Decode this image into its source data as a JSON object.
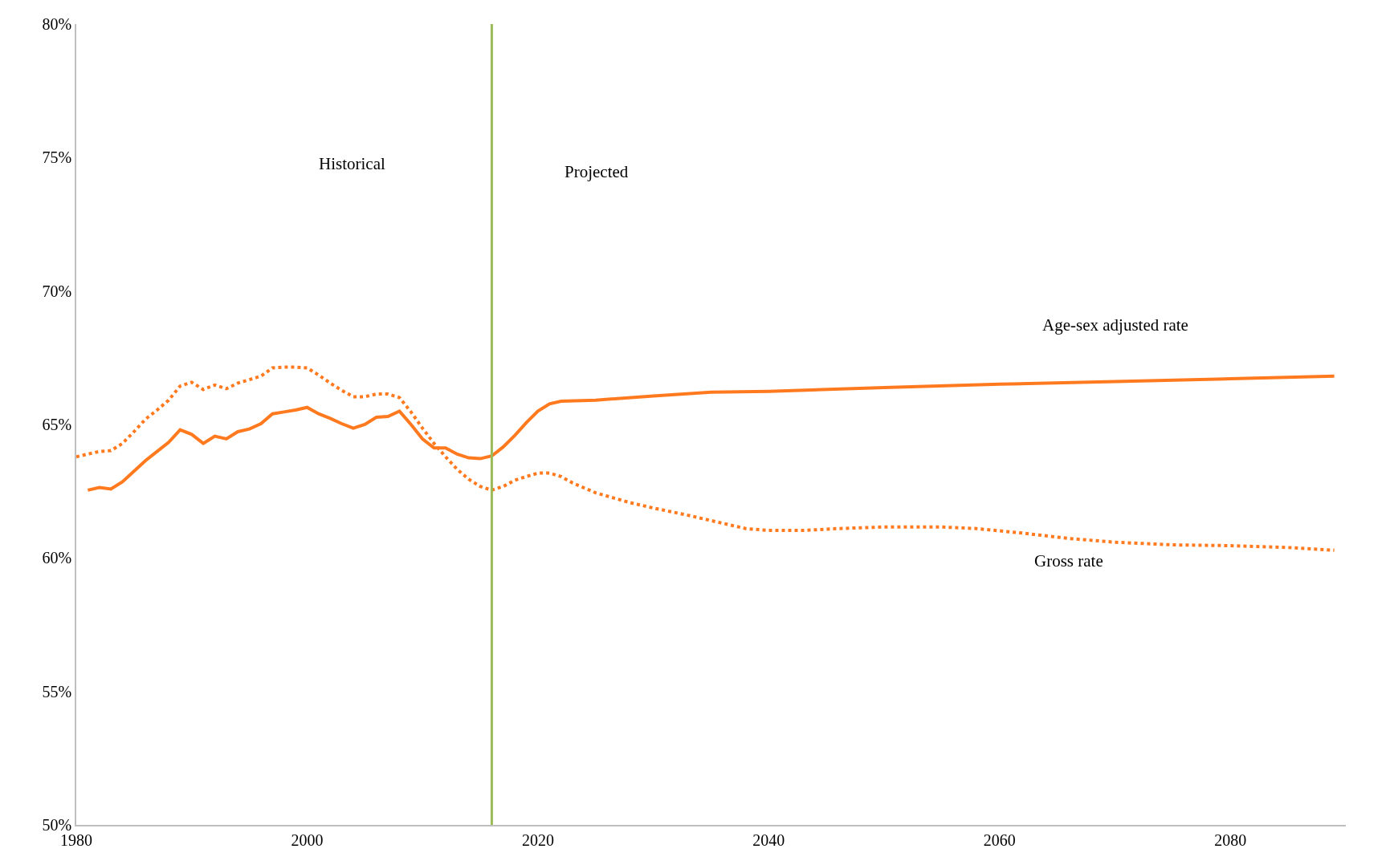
{
  "chart_data": {
    "type": "line",
    "series": [
      {
        "name": "Age-sex adjusted rate",
        "color": "#ff7a1f",
        "line_style": "solid",
        "x": [
          1981,
          1982,
          1983,
          1984,
          1985,
          1986,
          1987,
          1988,
          1989,
          1990,
          1991,
          1992,
          1993,
          1994,
          1995,
          1996,
          1997,
          1998,
          1999,
          2000,
          2001,
          2002,
          2003,
          2004,
          2005,
          2006,
          2007,
          2008,
          2009,
          2010,
          2011,
          2012,
          2013,
          2014,
          2015,
          2016,
          2017,
          2018,
          2019,
          2020,
          2021,
          2022,
          2025,
          2030,
          2035,
          2040,
          2050,
          2060,
          2070,
          2080,
          2089
        ],
        "values": [
          62.54,
          62.64,
          62.58,
          62.85,
          63.25,
          63.65,
          63.99,
          64.33,
          64.8,
          64.63,
          64.29,
          64.56,
          64.46,
          64.73,
          64.83,
          65.03,
          65.4,
          65.47,
          65.54,
          65.64,
          65.4,
          65.23,
          65.03,
          64.86,
          65.0,
          65.27,
          65.3,
          65.5,
          65.0,
          64.46,
          64.12,
          64.12,
          63.89,
          63.75,
          63.72,
          63.82,
          64.16,
          64.59,
          65.07,
          65.5,
          65.77,
          65.87,
          65.91,
          66.07,
          66.21,
          66.24,
          66.38,
          66.51,
          66.61,
          66.71,
          66.81
        ]
      },
      {
        "name": "Gross rate",
        "color": "#ff7a1f",
        "line_style": "dotted",
        "x": [
          1980,
          1982,
          1983,
          1984,
          1985,
          1986,
          1987,
          1988,
          1989,
          1990,
          1991,
          1992,
          1993,
          1994,
          1995,
          1996,
          1997,
          1998,
          1999,
          2000,
          2001,
          2002,
          2003,
          2004,
          2005,
          2006,
          2007,
          2008,
          2009,
          2010,
          2011,
          2012,
          2013,
          2014,
          2015,
          2016,
          2017,
          2018,
          2019,
          2020,
          2021,
          2022,
          2023,
          2025,
          2028,
          2030,
          2033,
          2036,
          2038,
          2040,
          2043,
          2046,
          2050,
          2055,
          2058,
          2062,
          2066,
          2070,
          2075,
          2080,
          2085,
          2089
        ],
        "values": [
          63.79,
          63.99,
          64.02,
          64.29,
          64.73,
          65.2,
          65.54,
          65.91,
          66.44,
          66.58,
          66.31,
          66.48,
          66.34,
          66.55,
          66.68,
          66.81,
          67.12,
          67.15,
          67.15,
          67.12,
          66.85,
          66.55,
          66.28,
          66.04,
          66.04,
          66.14,
          66.14,
          66.01,
          65.47,
          64.86,
          64.29,
          63.79,
          63.32,
          62.95,
          62.68,
          62.54,
          62.68,
          62.91,
          63.05,
          63.18,
          63.18,
          63.05,
          62.81,
          62.44,
          62.07,
          61.87,
          61.6,
          61.3,
          61.1,
          61.03,
          61.03,
          61.1,
          61.16,
          61.16,
          61.1,
          60.93,
          60.73,
          60.59,
          60.49,
          60.46,
          60.39,
          60.29
        ]
      }
    ],
    "xlim": [
      1980,
      2090
    ],
    "xticks": [
      1980,
      2000,
      2020,
      2040,
      2060,
      2080
    ],
    "ylim": [
      50,
      80
    ],
    "yticks": [
      {
        "value": 50,
        "label": "50%"
      },
      {
        "value": 55,
        "label": "55%"
      },
      {
        "value": 60,
        "label": "60%"
      },
      {
        "value": 65,
        "label": "65%"
      },
      {
        "value": 70,
        "label": "70%"
      },
      {
        "value": 75,
        "label": "75%"
      },
      {
        "value": 80,
        "label": "80%"
      }
    ],
    "ref_lines": [
      {
        "axis": "x",
        "value": 2016,
        "color": "#9bbb59"
      }
    ],
    "annotations": [
      "Historical",
      "Projected"
    ],
    "legend": false
  }
}
